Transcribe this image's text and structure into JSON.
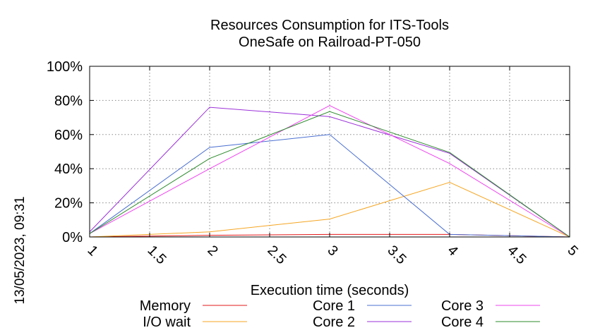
{
  "chart_data": {
    "type": "line",
    "title": "Resources Consumption for ITS-Tools",
    "subtitle": "OneSafe on Railroad-PT-050",
    "xlabel": "Execution time (seconds)",
    "ylabel": "",
    "timestamp": "13/05/2023, 09:31",
    "xlim": [
      1,
      5
    ],
    "ylim": [
      0,
      100
    ],
    "x_ticks": [
      "1",
      "1.5",
      "2",
      "2.5",
      "3",
      "3.5",
      "4",
      "4.5",
      "5"
    ],
    "x_tick_values": [
      1,
      1.5,
      2,
      2.5,
      3,
      3.5,
      4,
      4.5,
      5
    ],
    "y_ticks": [
      "0%",
      "20%",
      "40%",
      "60%",
      "80%",
      "100%"
    ],
    "y_tick_values": [
      0,
      20,
      40,
      60,
      80,
      100
    ],
    "grid": true,
    "legend_position": "bottom",
    "x": [
      1,
      2,
      3,
      4,
      5
    ],
    "series": [
      {
        "name": "Memory",
        "color": "#e41a1c",
        "values": [
          0,
          1,
          1.5,
          1.5,
          0
        ]
      },
      {
        "name": "I/O wait",
        "color": "#f5a623",
        "values": [
          0,
          3,
          10.5,
          32,
          0
        ]
      },
      {
        "name": "Core 1",
        "color": "#4a6fd1",
        "values": [
          2,
          52.5,
          60,
          1.5,
          0
        ]
      },
      {
        "name": "Core 2",
        "color": "#9b30d9",
        "values": [
          3,
          76,
          70.5,
          49,
          0
        ]
      },
      {
        "name": "Core 3",
        "color": "#ee44ee",
        "values": [
          2,
          40,
          77,
          43,
          0
        ]
      },
      {
        "name": "Core 4",
        "color": "#2e8b2e",
        "values": [
          2,
          46,
          73.5,
          49.5,
          0
        ]
      }
    ]
  }
}
